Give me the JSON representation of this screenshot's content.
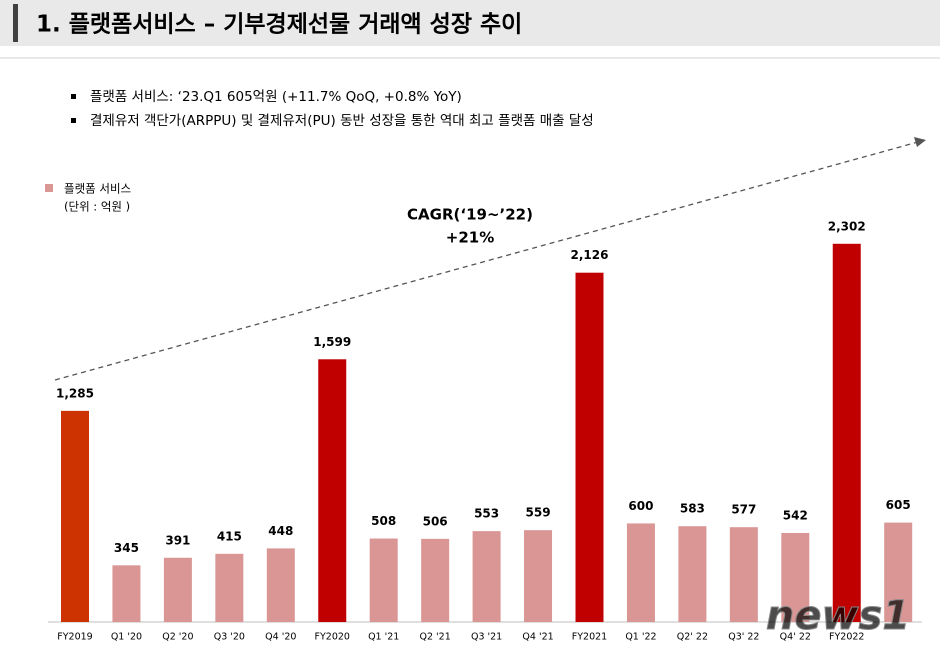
{
  "header": {
    "title": "1. 플랫폼서비스 – 기부경제선물 거래액 성장 추이"
  },
  "bullets": [
    "플랫폼 서비스: ‘23.Q1 605억원 (+11.7% QoQ, +0.8% YoY)",
    "결제유저 객단가(ARPPU) 및 결제유저(PU) 동반 성장을 통한 역대 최고 플랫폼 매출 달성"
  ],
  "watermark": "news1",
  "chart_data": {
    "type": "bar",
    "legend": "플랫폼 서비스",
    "unit": "(단위 : 억원 )",
    "annotation": [
      "CAGR(‘19~’22)",
      "+21%"
    ],
    "categories": [
      "FY2019",
      "Q1 '20",
      "Q2 '20",
      "Q3 '20",
      "Q4 '20",
      "FY2020",
      "Q1 '21",
      "Q2 '21",
      "Q3 '21",
      "Q4 '21",
      "FY2021",
      "Q1 '22",
      "Q2' 22",
      "Q3' 22",
      "Q4' 22",
      "FY2022",
      null
    ],
    "values": [
      1285,
      345,
      391,
      415,
      448,
      1599,
      508,
      506,
      553,
      559,
      2126,
      600,
      583,
      577,
      542,
      2302,
      605
    ],
    "value_labels": [
      "1,285",
      "345",
      "391",
      "415",
      "448",
      "1,599",
      "508",
      "506",
      "553",
      "559",
      "2,126",
      "600",
      "583",
      "577",
      "542",
      "2,302",
      "605"
    ],
    "colors": [
      "#cc3300",
      "#d99694",
      "#d99694",
      "#d99694",
      "#d99694",
      "#c00000",
      "#d99694",
      "#d99694",
      "#d99694",
      "#d99694",
      "#c00000",
      "#d99694",
      "#d99694",
      "#d99694",
      "#d99694",
      "#c00000",
      "#d99694"
    ],
    "color": "#d99694"
  }
}
